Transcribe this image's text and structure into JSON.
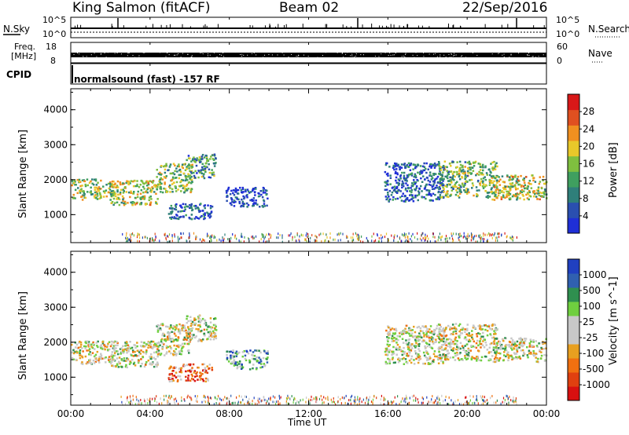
{
  "header": {
    "station": "King Salmon (fitACF)",
    "beam": "Beam 02",
    "date": "22/Sep/2016"
  },
  "top_panels": {
    "nsky_label": "N.Sky",
    "nsky_ticks": [
      "10^5",
      "10^0"
    ],
    "nsearch_label": "N.Search",
    "nsearch_ticks": [
      "10^5",
      "10^0"
    ],
    "freq_label_1": "Freq.",
    "freq_label_2": "[MHz]",
    "freq_ticks": [
      "18",
      "8"
    ],
    "nave_label": "Nave",
    "nave_ticks": [
      "60",
      "0"
    ],
    "cpid_label": "CPID",
    "cpid_text": "normalsound (fast) -157 RF"
  },
  "colors": {
    "power_scale": [
      "#1f2fd6",
      "#2a4fb0",
      "#2f7f7a",
      "#3f9f5f",
      "#7fbf3f",
      "#e8c82a",
      "#f09020",
      "#e05020",
      "#d81818"
    ],
    "velocity_scale": [
      "#2040c0",
      "#3060b0",
      "#2f8f4f",
      "#6fcf3f",
      "#c8c8c8",
      "#c8c8c8",
      "#e8a020",
      "#f07010",
      "#e04010",
      "#d81010"
    ]
  },
  "chart_data": [
    {
      "type": "heatmap",
      "panel": "power",
      "xlabel": "",
      "ylabel": "Slant Range [km]",
      "y_ticks": [
        "1000",
        "2000",
        "3000",
        "4000"
      ],
      "ylim": [
        200,
        4600
      ],
      "xlim": [
        0,
        24
      ],
      "colorbar_label": "Power [dB]",
      "colorbar_ticks": [
        "4",
        "8",
        "12",
        "16",
        "20",
        "24",
        "28"
      ],
      "colorbar_range": [
        0,
        30
      ],
      "regions": [
        {
          "t0": 0.0,
          "t1": 2.2,
          "r0": 1450,
          "r1": 2050,
          "level": 0.5
        },
        {
          "t0": 2.0,
          "t1": 4.4,
          "r0": 1300,
          "r1": 2000,
          "level": 0.55
        },
        {
          "t0": 4.3,
          "t1": 6.1,
          "r0": 1650,
          "r1": 2500,
          "level": 0.45
        },
        {
          "t0": 5.8,
          "t1": 7.3,
          "r0": 2050,
          "r1": 2750,
          "level": 0.35
        },
        {
          "t0": 4.9,
          "t1": 7.1,
          "r0": 900,
          "r1": 1350,
          "level": 0.15
        },
        {
          "t0": 7.8,
          "t1": 9.9,
          "r0": 1250,
          "r1": 1800,
          "level": 0.1
        },
        {
          "t0": 15.8,
          "t1": 18.8,
          "r0": 1400,
          "r1": 2500,
          "level": 0.2
        },
        {
          "t0": 18.5,
          "t1": 21.5,
          "r0": 1500,
          "r1": 2550,
          "level": 0.45
        },
        {
          "t0": 21.2,
          "t1": 24.0,
          "r0": 1450,
          "r1": 2150,
          "level": 0.55
        },
        {
          "t0": 2.5,
          "t1": 22.5,
          "r0": 250,
          "r1": 500,
          "level": 0.4
        }
      ]
    },
    {
      "type": "heatmap",
      "panel": "velocity",
      "xlabel": "Time UT",
      "ylabel": "Slant Range [km]",
      "x_ticks": [
        "00:00",
        "04:00",
        "08:00",
        "12:00",
        "16:00",
        "20:00",
        "00:00"
      ],
      "y_ticks": [
        "1000",
        "2000",
        "3000",
        "4000"
      ],
      "ylim": [
        200,
        4600
      ],
      "xlim": [
        0,
        24
      ],
      "colorbar_label": "Velocity [m s^-1]",
      "colorbar_ticks": [
        "1000",
        "500",
        "100",
        "25",
        "-25",
        "-100",
        "-500",
        "-1000"
      ],
      "regions": [
        {
          "t0": 0.0,
          "t1": 2.2,
          "r0": 1400,
          "r1": 2050,
          "level": 0.5
        },
        {
          "t0": 2.0,
          "t1": 4.4,
          "r0": 1300,
          "r1": 2050,
          "level": 0.5
        },
        {
          "t0": 4.3,
          "t1": 6.1,
          "r0": 1650,
          "r1": 2550,
          "level": 0.5
        },
        {
          "t0": 5.8,
          "t1": 7.3,
          "r0": 2050,
          "r1": 2800,
          "level": 0.5
        },
        {
          "t0": 4.9,
          "t1": 7.1,
          "r0": 900,
          "r1": 1400,
          "level": 0.75
        },
        {
          "t0": 7.8,
          "t1": 9.9,
          "r0": 1250,
          "r1": 1800,
          "level": 0.3
        },
        {
          "t0": 15.8,
          "t1": 18.8,
          "r0": 1400,
          "r1": 2500,
          "level": 0.5
        },
        {
          "t0": 18.5,
          "t1": 21.5,
          "r0": 1500,
          "r1": 2550,
          "level": 0.5
        },
        {
          "t0": 21.2,
          "t1": 24.0,
          "r0": 1450,
          "r1": 2150,
          "level": 0.5
        },
        {
          "t0": 2.5,
          "t1": 22.5,
          "r0": 250,
          "r1": 500,
          "level": 0.65
        }
      ]
    }
  ]
}
